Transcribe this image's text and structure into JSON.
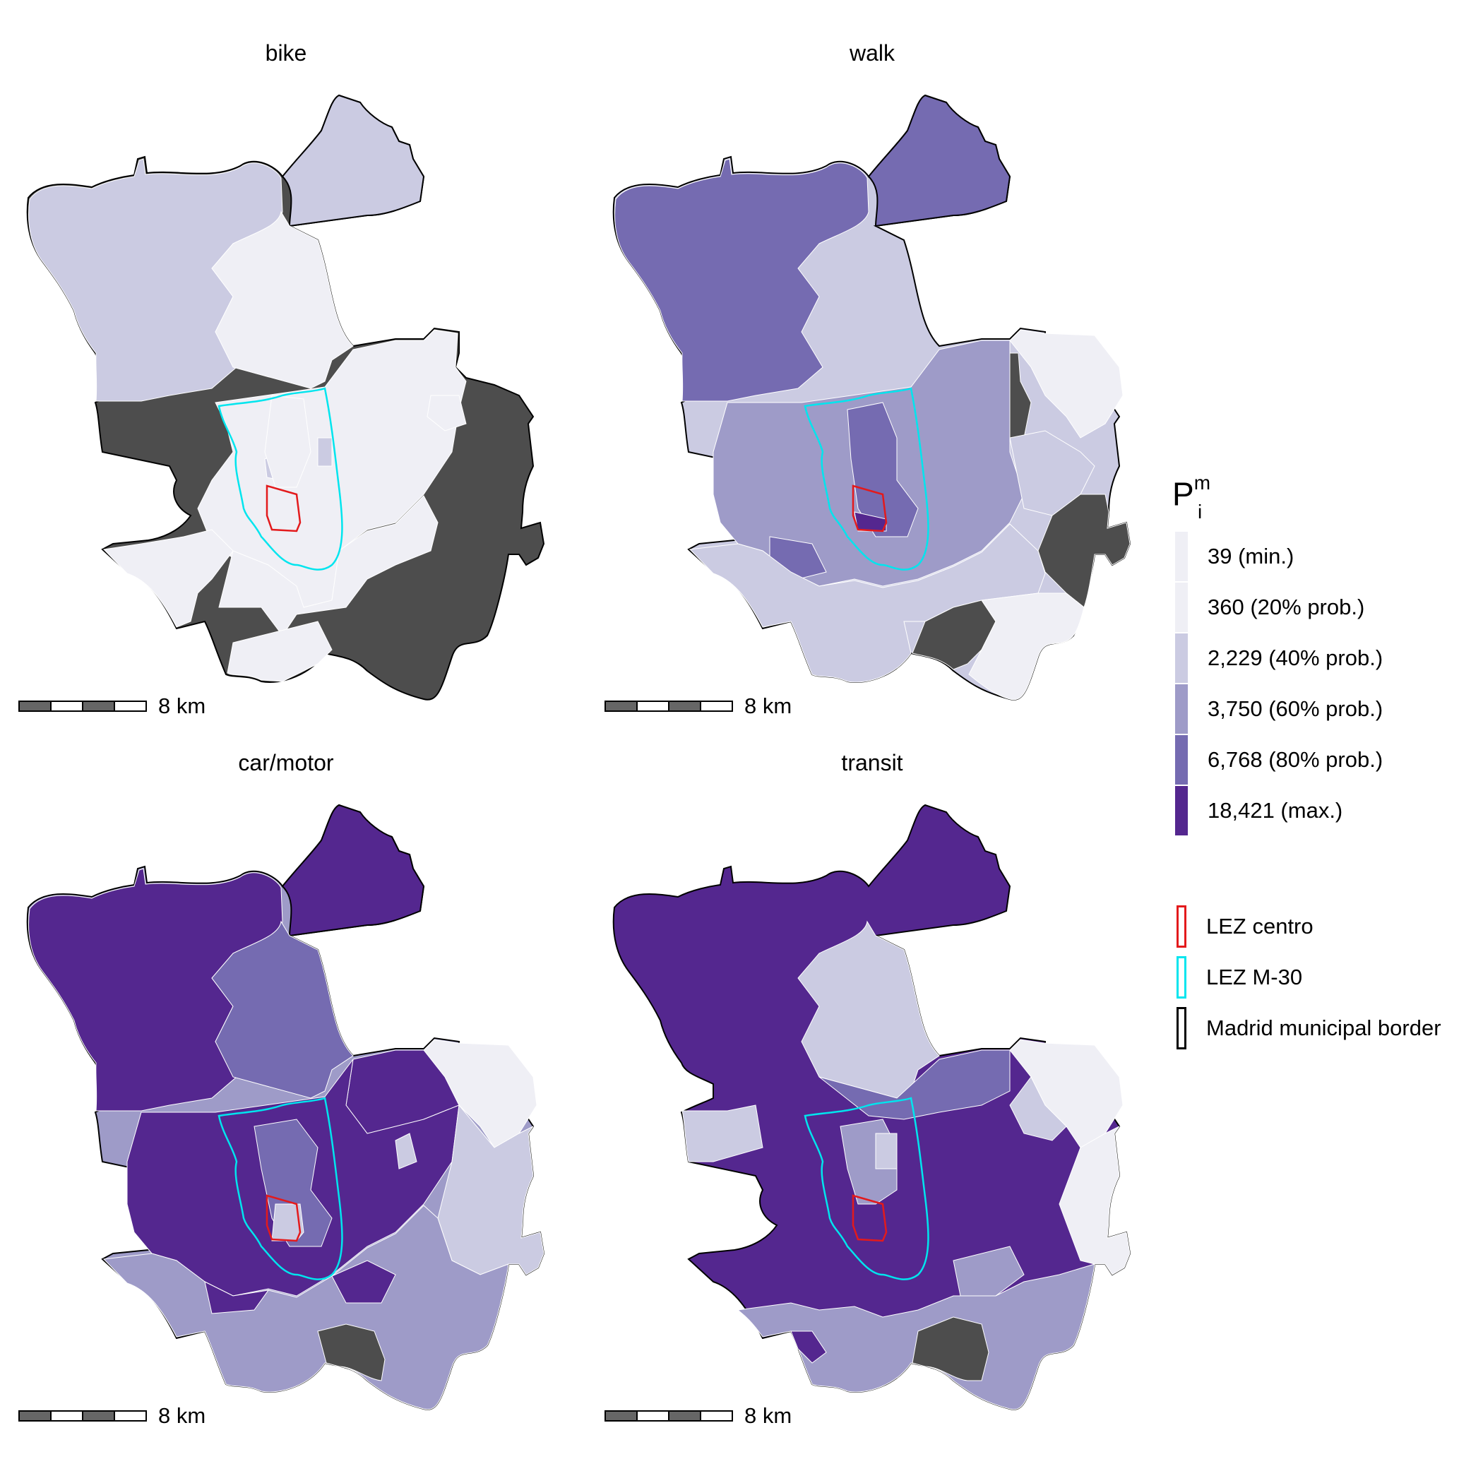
{
  "panels": [
    {
      "title": "bike",
      "scale_label": "8 km"
    },
    {
      "title": "walk",
      "scale_label": "8 km"
    },
    {
      "title": "car/motor",
      "scale_label": "8 km"
    },
    {
      "title": "transit",
      "scale_label": "8 km"
    }
  ],
  "legend": {
    "title_main": "P",
    "title_sup": "m",
    "title_sub": "i",
    "classes": [
      {
        "label": "39 (min.)",
        "color": "#efeff5"
      },
      {
        "label": "360 (20% prob.)",
        "color": "#efeff5"
      },
      {
        "label": "2,229 (40% prob.)",
        "color": "#cbcbe2"
      },
      {
        "label": "3,750 (60% prob.)",
        "color": "#9e9bc8"
      },
      {
        "label": "6,768 (80% prob.)",
        "color": "#756bb1"
      },
      {
        "label": "18,421 (max.)",
        "color": "#54278f"
      }
    ],
    "boundaries": [
      {
        "label": "LEZ centro",
        "color": "#e31a1c"
      },
      {
        "label": "LEZ M-30",
        "color": "#00e5ee"
      },
      {
        "label": "Madrid municipal border",
        "color": "#000000"
      }
    ]
  },
  "no_data_color": "#4d4d4d"
}
